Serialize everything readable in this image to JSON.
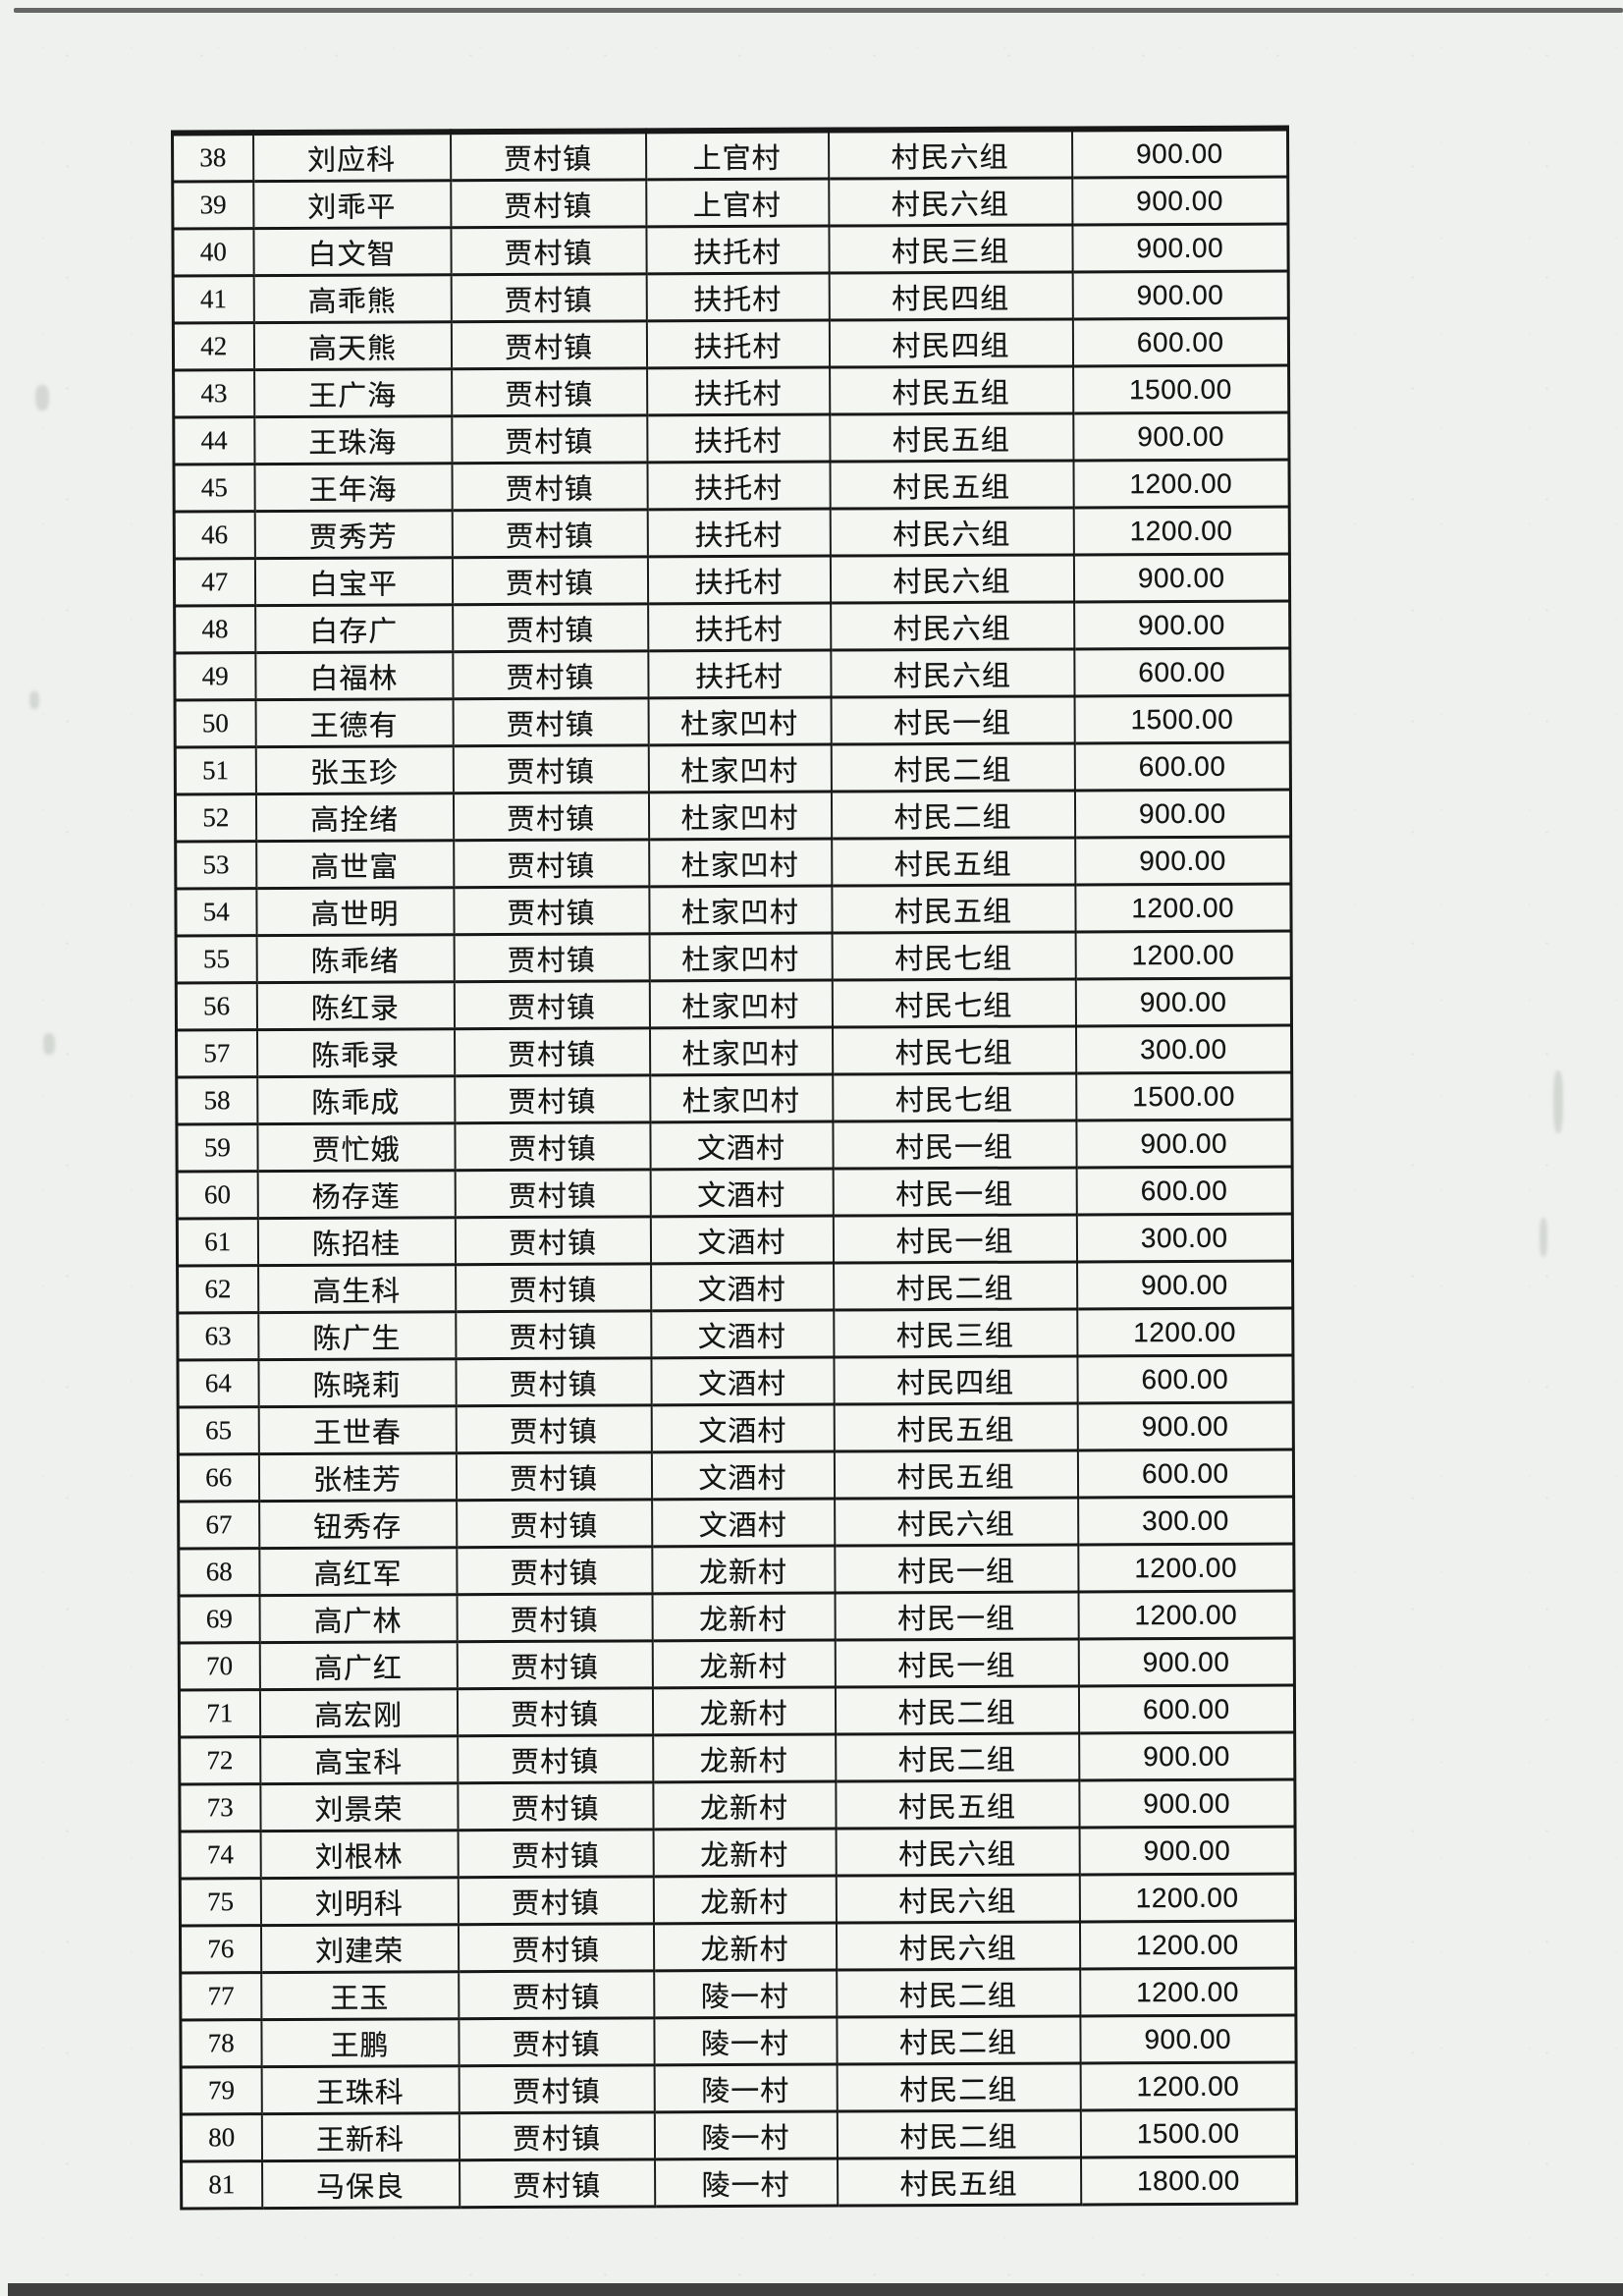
{
  "table": {
    "town_repeated_value": "贾村镇",
    "row_number_range": {
      "first": "38",
      "last": "81"
    },
    "rows": [
      [
        "38",
        "刘应科",
        "贾村镇",
        "上官村",
        "村民六组",
        "900.00"
      ],
      [
        "39",
        "刘乖平",
        "贾村镇",
        "上官村",
        "村民六组",
        "900.00"
      ],
      [
        "40",
        "白文智",
        "贾村镇",
        "扶托村",
        "村民三组",
        "900.00"
      ],
      [
        "41",
        "高乖熊",
        "贾村镇",
        "扶托村",
        "村民四组",
        "900.00"
      ],
      [
        "42",
        "高天熊",
        "贾村镇",
        "扶托村",
        "村民四组",
        "600.00"
      ],
      [
        "43",
        "王广海",
        "贾村镇",
        "扶托村",
        "村民五组",
        "1500.00"
      ],
      [
        "44",
        "王珠海",
        "贾村镇",
        "扶托村",
        "村民五组",
        "900.00"
      ],
      [
        "45",
        "王年海",
        "贾村镇",
        "扶托村",
        "村民五组",
        "1200.00"
      ],
      [
        "46",
        "贾秀芳",
        "贾村镇",
        "扶托村",
        "村民六组",
        "1200.00"
      ],
      [
        "47",
        "白宝平",
        "贾村镇",
        "扶托村",
        "村民六组",
        "900.00"
      ],
      [
        "48",
        "白存广",
        "贾村镇",
        "扶托村",
        "村民六组",
        "900.00"
      ],
      [
        "49",
        "白福林",
        "贾村镇",
        "扶托村",
        "村民六组",
        "600.00"
      ],
      [
        "50",
        "王德有",
        "贾村镇",
        "杜家凹村",
        "村民一组",
        "1500.00"
      ],
      [
        "51",
        "张玉珍",
        "贾村镇",
        "杜家凹村",
        "村民二组",
        "600.00"
      ],
      [
        "52",
        "高拴绪",
        "贾村镇",
        "杜家凹村",
        "村民二组",
        "900.00"
      ],
      [
        "53",
        "高世富",
        "贾村镇",
        "杜家凹村",
        "村民五组",
        "900.00"
      ],
      [
        "54",
        "高世明",
        "贾村镇",
        "杜家凹村",
        "村民五组",
        "1200.00"
      ],
      [
        "55",
        "陈乖绪",
        "贾村镇",
        "杜家凹村",
        "村民七组",
        "1200.00"
      ],
      [
        "56",
        "陈红录",
        "贾村镇",
        "杜家凹村",
        "村民七组",
        "900.00"
      ],
      [
        "57",
        "陈乖录",
        "贾村镇",
        "杜家凹村",
        "村民七组",
        "300.00"
      ],
      [
        "58",
        "陈乖成",
        "贾村镇",
        "杜家凹村",
        "村民七组",
        "1500.00"
      ],
      [
        "59",
        "贾忙娥",
        "贾村镇",
        "文酒村",
        "村民一组",
        "900.00"
      ],
      [
        "60",
        "杨存莲",
        "贾村镇",
        "文酒村",
        "村民一组",
        "600.00"
      ],
      [
        "61",
        "陈招桂",
        "贾村镇",
        "文酒村",
        "村民一组",
        "300.00"
      ],
      [
        "62",
        "高生科",
        "贾村镇",
        "文酒村",
        "村民二组",
        "900.00"
      ],
      [
        "63",
        "陈广生",
        "贾村镇",
        "文酒村",
        "村民三组",
        "1200.00"
      ],
      [
        "64",
        "陈晓莉",
        "贾村镇",
        "文酒村",
        "村民四组",
        "600.00"
      ],
      [
        "65",
        "王世春",
        "贾村镇",
        "文酒村",
        "村民五组",
        "900.00"
      ],
      [
        "66",
        "张桂芳",
        "贾村镇",
        "文酒村",
        "村民五组",
        "600.00"
      ],
      [
        "67",
        "钮秀存",
        "贾村镇",
        "文酒村",
        "村民六组",
        "300.00"
      ],
      [
        "68",
        "高红军",
        "贾村镇",
        "龙新村",
        "村民一组",
        "1200.00"
      ],
      [
        "69",
        "高广林",
        "贾村镇",
        "龙新村",
        "村民一组",
        "1200.00"
      ],
      [
        "70",
        "高广红",
        "贾村镇",
        "龙新村",
        "村民一组",
        "900.00"
      ],
      [
        "71",
        "高宏刚",
        "贾村镇",
        "龙新村",
        "村民二组",
        "600.00"
      ],
      [
        "72",
        "高宝科",
        "贾村镇",
        "龙新村",
        "村民二组",
        "900.00"
      ],
      [
        "73",
        "刘景荣",
        "贾村镇",
        "龙新村",
        "村民五组",
        "900.00"
      ],
      [
        "74",
        "刘根林",
        "贾村镇",
        "龙新村",
        "村民六组",
        "900.00"
      ],
      [
        "75",
        "刘明科",
        "贾村镇",
        "龙新村",
        "村民六组",
        "1200.00"
      ],
      [
        "76",
        "刘建荣",
        "贾村镇",
        "龙新村",
        "村民六组",
        "1200.00"
      ],
      [
        "77",
        "王玉",
        "贾村镇",
        "陵一村",
        "村民二组",
        "1200.00"
      ],
      [
        "78",
        "王鹏",
        "贾村镇",
        "陵一村",
        "村民二组",
        "900.00"
      ],
      [
        "79",
        "王珠科",
        "贾村镇",
        "陵一村",
        "村民二组",
        "1200.00"
      ],
      [
        "80",
        "王新科",
        "贾村镇",
        "陵一村",
        "村民二组",
        "1500.00"
      ],
      [
        "81",
        "马保良",
        "贾村镇",
        "陵一村",
        "村民五组",
        "1800.00"
      ]
    ]
  },
  "colors": {
    "paper": "#eff1ee",
    "table_background": "#f4f6f2",
    "border": "#181818",
    "text": "#151515",
    "scan_edge": "#3f3f3f"
  }
}
